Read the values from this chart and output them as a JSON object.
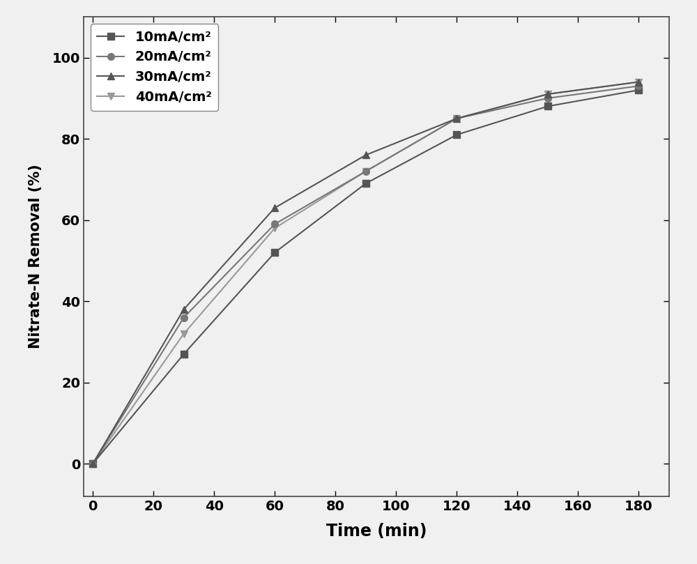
{
  "series": [
    {
      "label": "10mA/cm²",
      "x": [
        0,
        30,
        60,
        90,
        120,
        150,
        180
      ],
      "y": [
        0,
        27,
        52,
        69,
        81,
        88,
        92
      ],
      "marker": "s",
      "color": "#555555",
      "markersize": 7,
      "zorder": 2
    },
    {
      "label": "20mA/cm²",
      "x": [
        0,
        30,
        60,
        90,
        120,
        150,
        180
      ],
      "y": [
        0,
        36,
        59,
        72,
        85,
        90,
        93
      ],
      "marker": "o",
      "color": "#777777",
      "markersize": 7,
      "zorder": 3
    },
    {
      "label": "30mA/cm²",
      "x": [
        0,
        30,
        60,
        90,
        120,
        150,
        180
      ],
      "y": [
        0,
        38,
        63,
        76,
        85,
        91,
        94
      ],
      "marker": "^",
      "color": "#555555",
      "markersize": 7,
      "zorder": 4
    },
    {
      "label": "40mA/cm²",
      "x": [
        0,
        30,
        60,
        90,
        120,
        150,
        180
      ],
      "y": [
        0,
        32,
        58,
        72,
        85,
        91,
        94
      ],
      "marker": "v",
      "color": "#999999",
      "markersize": 7,
      "zorder": 1
    }
  ],
  "xlabel": "Time (min)",
  "ylabel": "Nitrate-N Removal (%)",
  "xlim": [
    -3,
    190
  ],
  "ylim": [
    -8,
    110
  ],
  "xticks": [
    0,
    20,
    40,
    60,
    80,
    100,
    120,
    140,
    160,
    180
  ],
  "yticks": [
    0,
    20,
    40,
    60,
    80,
    100
  ],
  "legend_fontsize": 14,
  "xlabel_fontsize": 17,
  "ylabel_fontsize": 15,
  "tick_labelsize": 14,
  "linewidth": 1.5,
  "background_color": "#f0f0f0",
  "plot_bg_color": "#f0f0f0",
  "spine_color": "#444444",
  "grid": false
}
